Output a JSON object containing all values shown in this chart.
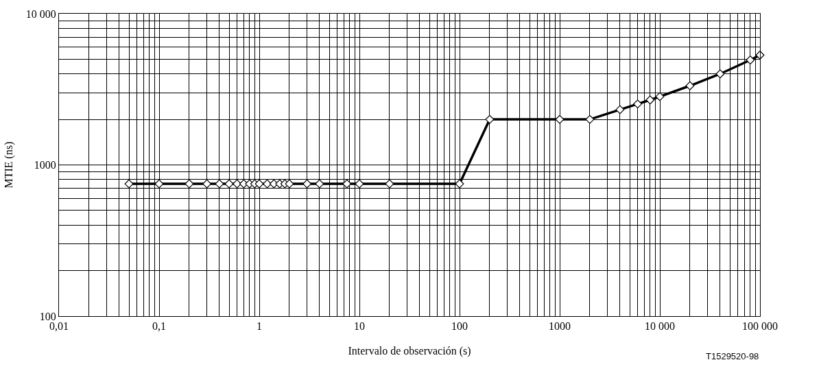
{
  "chart_data": {
    "type": "line",
    "xlabel": "Intervalo de observación (s)",
    "ylabel": "MTIE (ns)",
    "x": [
      0.05,
      0.1,
      0.2,
      0.3,
      0.4,
      0.5,
      0.6,
      0.7,
      0.8,
      0.9,
      1,
      1.2,
      1.4,
      1.6,
      1.8,
      2,
      3,
      4,
      7.5,
      10,
      20,
      100,
      200,
      1000,
      2000,
      4000,
      6000,
      8000,
      10000,
      20000,
      40000,
      80000,
      100000
    ],
    "series": [
      {
        "color": "#000000",
        "values": [
          750,
          750,
          750,
          750,
          750,
          750,
          750,
          750,
          750,
          750,
          750,
          750,
          750,
          750,
          750,
          750,
          750,
          750,
          750,
          750,
          750,
          750,
          2000,
          2000,
          2000,
          2320,
          2530,
          2690,
          2830,
          3340,
          4000,
          4940,
          5330
        ]
      }
    ],
    "log": "xy",
    "marker": "diamond",
    "line_style": "solid",
    "grid": true,
    "legend": false,
    "xlim": [
      0.01,
      100000
    ],
    "ylim": [
      100,
      10000
    ],
    "xticks": [
      {
        "value": 0.01,
        "label": "0,01"
      },
      {
        "value": 0.02,
        "label": null
      },
      {
        "value": 0.03,
        "label": null
      },
      {
        "value": 0.04,
        "label": null
      },
      {
        "value": 0.05,
        "label": null
      },
      {
        "value": 0.06,
        "label": null
      },
      {
        "value": 0.07,
        "label": null
      },
      {
        "value": 0.08,
        "label": null
      },
      {
        "value": 0.09,
        "label": null
      },
      {
        "value": 0.1,
        "label": "0,1"
      },
      {
        "value": 0.2,
        "label": null
      },
      {
        "value": 0.3,
        "label": null
      },
      {
        "value": 0.4,
        "label": null
      },
      {
        "value": 0.5,
        "label": null
      },
      {
        "value": 0.6,
        "label": null
      },
      {
        "value": 0.7,
        "label": null
      },
      {
        "value": 0.8,
        "label": null
      },
      {
        "value": 0.9,
        "label": null
      },
      1,
      {
        "value": 2,
        "label": null
      },
      {
        "value": 3,
        "label": null
      },
      {
        "value": 4,
        "label": null
      },
      {
        "value": 5,
        "label": null
      },
      {
        "value": 6,
        "label": null
      },
      {
        "value": 7,
        "label": null
      },
      {
        "value": 8,
        "label": null
      },
      {
        "value": 9,
        "label": null
      },
      10,
      {
        "value": 20,
        "label": null
      },
      {
        "value": 30,
        "label": null
      },
      {
        "value": 40,
        "label": null
      },
      {
        "value": 50,
        "label": null
      },
      {
        "value": 60,
        "label": null
      },
      {
        "value": 70,
        "label": null
      },
      {
        "value": 80,
        "label": null
      },
      {
        "value": 90,
        "label": null
      },
      100,
      {
        "value": 200,
        "label": null
      },
      {
        "value": 300,
        "label": null
      },
      {
        "value": 400,
        "label": null
      },
      {
        "value": 500,
        "label": null
      },
      {
        "value": 600,
        "label": null
      },
      {
        "value": 700,
        "label": null
      },
      {
        "value": 800,
        "label": null
      },
      {
        "value": 900,
        "label": null
      },
      1000,
      {
        "value": 2000,
        "label": null
      },
      {
        "value": 3000,
        "label": null
      },
      {
        "value": 4000,
        "label": null
      },
      {
        "value": 5000,
        "label": null
      },
      {
        "value": 6000,
        "label": null
      },
      {
        "value": 7000,
        "label": null
      },
      {
        "value": 8000,
        "label": null
      },
      {
        "value": 9000,
        "label": null
      },
      {
        "value": 10000,
        "label": "10 000"
      },
      {
        "value": 20000,
        "label": null
      },
      {
        "value": 30000,
        "label": null
      },
      {
        "value": 40000,
        "label": null
      },
      {
        "value": 50000,
        "label": null
      },
      {
        "value": 60000,
        "label": null
      },
      {
        "value": 70000,
        "label": null
      },
      {
        "value": 80000,
        "label": null
      },
      {
        "value": 90000,
        "label": null
      },
      {
        "value": 100000,
        "label": "100 000"
      }
    ],
    "yticks": [
      100,
      {
        "value": 200,
        "label": null
      },
      {
        "value": 300,
        "label": null
      },
      {
        "value": 400,
        "label": null
      },
      {
        "value": 500,
        "label": null
      },
      {
        "value": 600,
        "label": null
      },
      {
        "value": 700,
        "label": null
      },
      {
        "value": 800,
        "label": null
      },
      {
        "value": 900,
        "label": null
      },
      1000,
      {
        "value": 2000,
        "label": null
      },
      {
        "value": 3000,
        "label": null
      },
      {
        "value": 4000,
        "label": null
      },
      {
        "value": 5000,
        "label": null
      },
      {
        "value": 6000,
        "label": null
      },
      {
        "value": 7000,
        "label": null
      },
      {
        "value": 8000,
        "label": null
      },
      {
        "value": 9000,
        "label": null
      },
      {
        "value": 10000,
        "label": "10 000"
      }
    ],
    "annotations": [
      "T1529520-98"
    ]
  }
}
